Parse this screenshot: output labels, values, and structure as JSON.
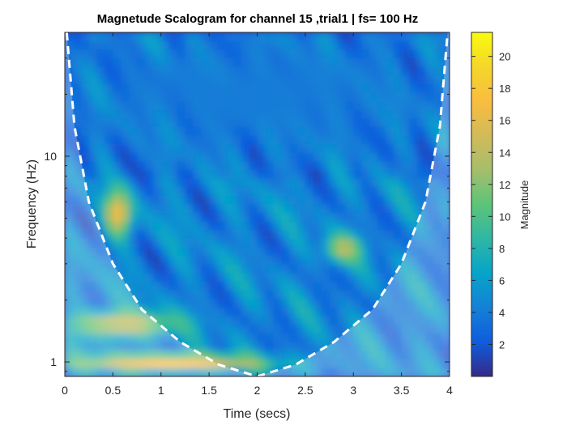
{
  "chart_data": {
    "type": "heatmap",
    "title": "Magnetude Scalogram for channel 15 ,trial1 | fs= 100 Hz",
    "xlabel": "Time (secs)",
    "ylabel": "Frequency (Hz)",
    "colorbar_label": "Magnitude",
    "xlim": [
      0,
      4
    ],
    "ylim": [
      0.85,
      40
    ],
    "yscale": "log",
    "x_ticks": [
      0,
      0.5,
      1,
      1.5,
      2,
      2.5,
      3,
      3.5,
      4
    ],
    "x_tick_labels": [
      "0",
      "0.5",
      "1",
      "1.5",
      "2",
      "2.5",
      "3",
      "3.5",
      "4"
    ],
    "y_ticks": [
      1,
      10
    ],
    "y_tick_labels": [
      "1",
      "10"
    ],
    "colorbar_range": [
      0,
      21.5
    ],
    "colorbar_ticks": [
      2,
      4,
      6,
      8,
      10,
      12,
      14,
      16,
      18,
      20
    ],
    "colorbar_tick_labels": [
      "2",
      "4",
      "6",
      "8",
      "10",
      "12",
      "14",
      "16",
      "18",
      "20"
    ],
    "colormap": "parula",
    "cone_of_influence": {
      "style": "dashed",
      "color": "#ffffff",
      "apex": [
        2,
        0.85
      ],
      "points": [
        [
          0.02,
          40
        ],
        [
          0.1,
          14
        ],
        [
          0.25,
          6
        ],
        [
          0.5,
          3
        ],
        [
          0.8,
          1.8
        ],
        [
          1.2,
          1.25
        ],
        [
          1.6,
          0.97
        ],
        [
          2,
          0.85
        ],
        [
          2.4,
          0.97
        ],
        [
          2.8,
          1.25
        ],
        [
          3.2,
          1.8
        ],
        [
          3.5,
          3
        ],
        [
          3.75,
          6
        ],
        [
          3.9,
          14
        ],
        [
          3.98,
          40
        ]
      ]
    },
    "regions": [
      {
        "t": [
          0,
          2.2
        ],
        "f": [
          0.9,
          1.1
        ],
        "magnitude": 18
      },
      {
        "t": [
          0,
          1.2
        ],
        "f": [
          1.3,
          1.8
        ],
        "magnitude": 15
      },
      {
        "t": [
          0.4,
          0.7
        ],
        "f": [
          4,
          7
        ],
        "magnitude": 17
      },
      {
        "t": [
          2.7,
          3.1
        ],
        "f": [
          3,
          4.2
        ],
        "magnitude": 14
      },
      {
        "t": [
          0,
          4
        ],
        "f": [
          10,
          40
        ],
        "magnitude": 4
      }
    ]
  }
}
